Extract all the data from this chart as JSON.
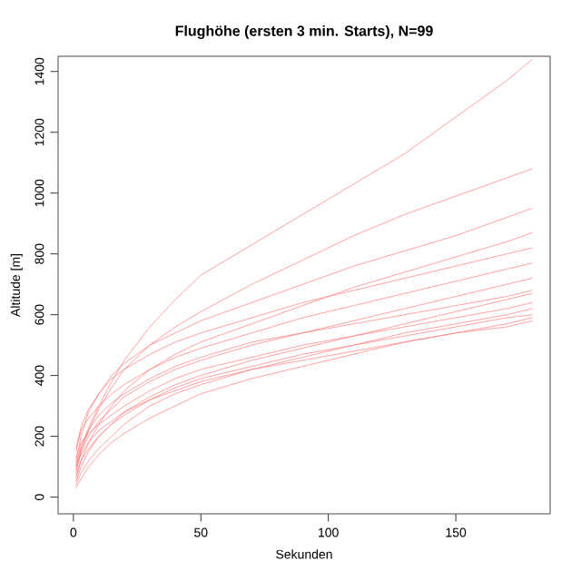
{
  "chart_data": {
    "type": "line",
    "title": "Flughöhe (ersten 3 min. Starts), N=99",
    "xlabel": "Sekunden",
    "ylabel": "Altitude [m]",
    "x": [
      1,
      3,
      6,
      10,
      15,
      20,
      30,
      40,
      50,
      70,
      90,
      110,
      130,
      150,
      170,
      180
    ],
    "xlim": [
      -6,
      187
    ],
    "ylim": [
      -55,
      1450
    ],
    "xticks": [
      0,
      50,
      100,
      150
    ],
    "yticks": [
      0,
      200,
      400,
      600,
      800,
      1000,
      1200,
      1400
    ],
    "grid": false,
    "marker": "none",
    "line_style": "solid",
    "series": [
      {
        "color": "#ff7a7a",
        "values": [
          100,
          160,
          230,
          300,
          380,
          450,
          560,
          650,
          730,
          830,
          930,
          1030,
          1130,
          1250,
          1370,
          1440
        ]
      },
      {
        "color": "#ff7a7a",
        "values": [
          80,
          150,
          220,
          290,
          360,
          420,
          500,
          560,
          610,
          700,
          780,
          860,
          930,
          990,
          1050,
          1080
        ]
      },
      {
        "color": "#ff7a7a",
        "values": [
          120,
          200,
          280,
          340,
          400,
          440,
          500,
          540,
          580,
          640,
          700,
          760,
          810,
          860,
          920,
          950
        ]
      },
      {
        "color": "#ff7a7a",
        "values": [
          60,
          120,
          180,
          240,
          300,
          350,
          420,
          470,
          510,
          570,
          630,
          690,
          740,
          790,
          840,
          870
        ]
      },
      {
        "color": "#ff7a7a",
        "values": [
          150,
          220,
          260,
          300,
          340,
          370,
          420,
          460,
          490,
          540,
          590,
          630,
          670,
          710,
          750,
          770
        ]
      },
      {
        "color": "#ff7a7a",
        "values": [
          90,
          150,
          200,
          250,
          290,
          330,
          380,
          420,
          450,
          500,
          540,
          580,
          620,
          660,
          700,
          720
        ]
      },
      {
        "color": "#ff7a7a",
        "values": [
          110,
          170,
          220,
          270,
          310,
          340,
          390,
          430,
          460,
          510,
          540,
          570,
          600,
          630,
          660,
          680
        ]
      },
      {
        "color": "#ff7a7a",
        "values": [
          50,
          100,
          150,
          200,
          240,
          280,
          330,
          370,
          400,
          450,
          490,
          530,
          570,
          610,
          650,
          670
        ]
      },
      {
        "color": "#ff7a7a",
        "values": [
          130,
          180,
          210,
          240,
          270,
          300,
          350,
          390,
          420,
          460,
          500,
          530,
          560,
          590,
          620,
          640
        ]
      },
      {
        "color": "#ff7a7a",
        "values": [
          40,
          80,
          120,
          160,
          200,
          240,
          300,
          340,
          370,
          420,
          460,
          500,
          540,
          570,
          600,
          620
        ]
      },
      {
        "color": "#ff7a7a",
        "values": [
          70,
          120,
          160,
          200,
          240,
          270,
          320,
          360,
          390,
          430,
          470,
          500,
          530,
          560,
          590,
          600
        ]
      },
      {
        "color": "#ff7a7a",
        "values": [
          30,
          60,
          100,
          140,
          180,
          210,
          260,
          300,
          340,
          390,
          430,
          470,
          510,
          540,
          570,
          590
        ]
      },
      {
        "color": "#ff7a7a",
        "values": [
          160,
          230,
          290,
          340,
          390,
          420,
          470,
          510,
          540,
          590,
          640,
          680,
          720,
          760,
          800,
          820
        ]
      },
      {
        "color": "#ff7a7a",
        "values": [
          100,
          140,
          180,
          220,
          250,
          280,
          320,
          350,
          380,
          420,
          450,
          480,
          510,
          540,
          560,
          580
        ]
      }
    ]
  }
}
